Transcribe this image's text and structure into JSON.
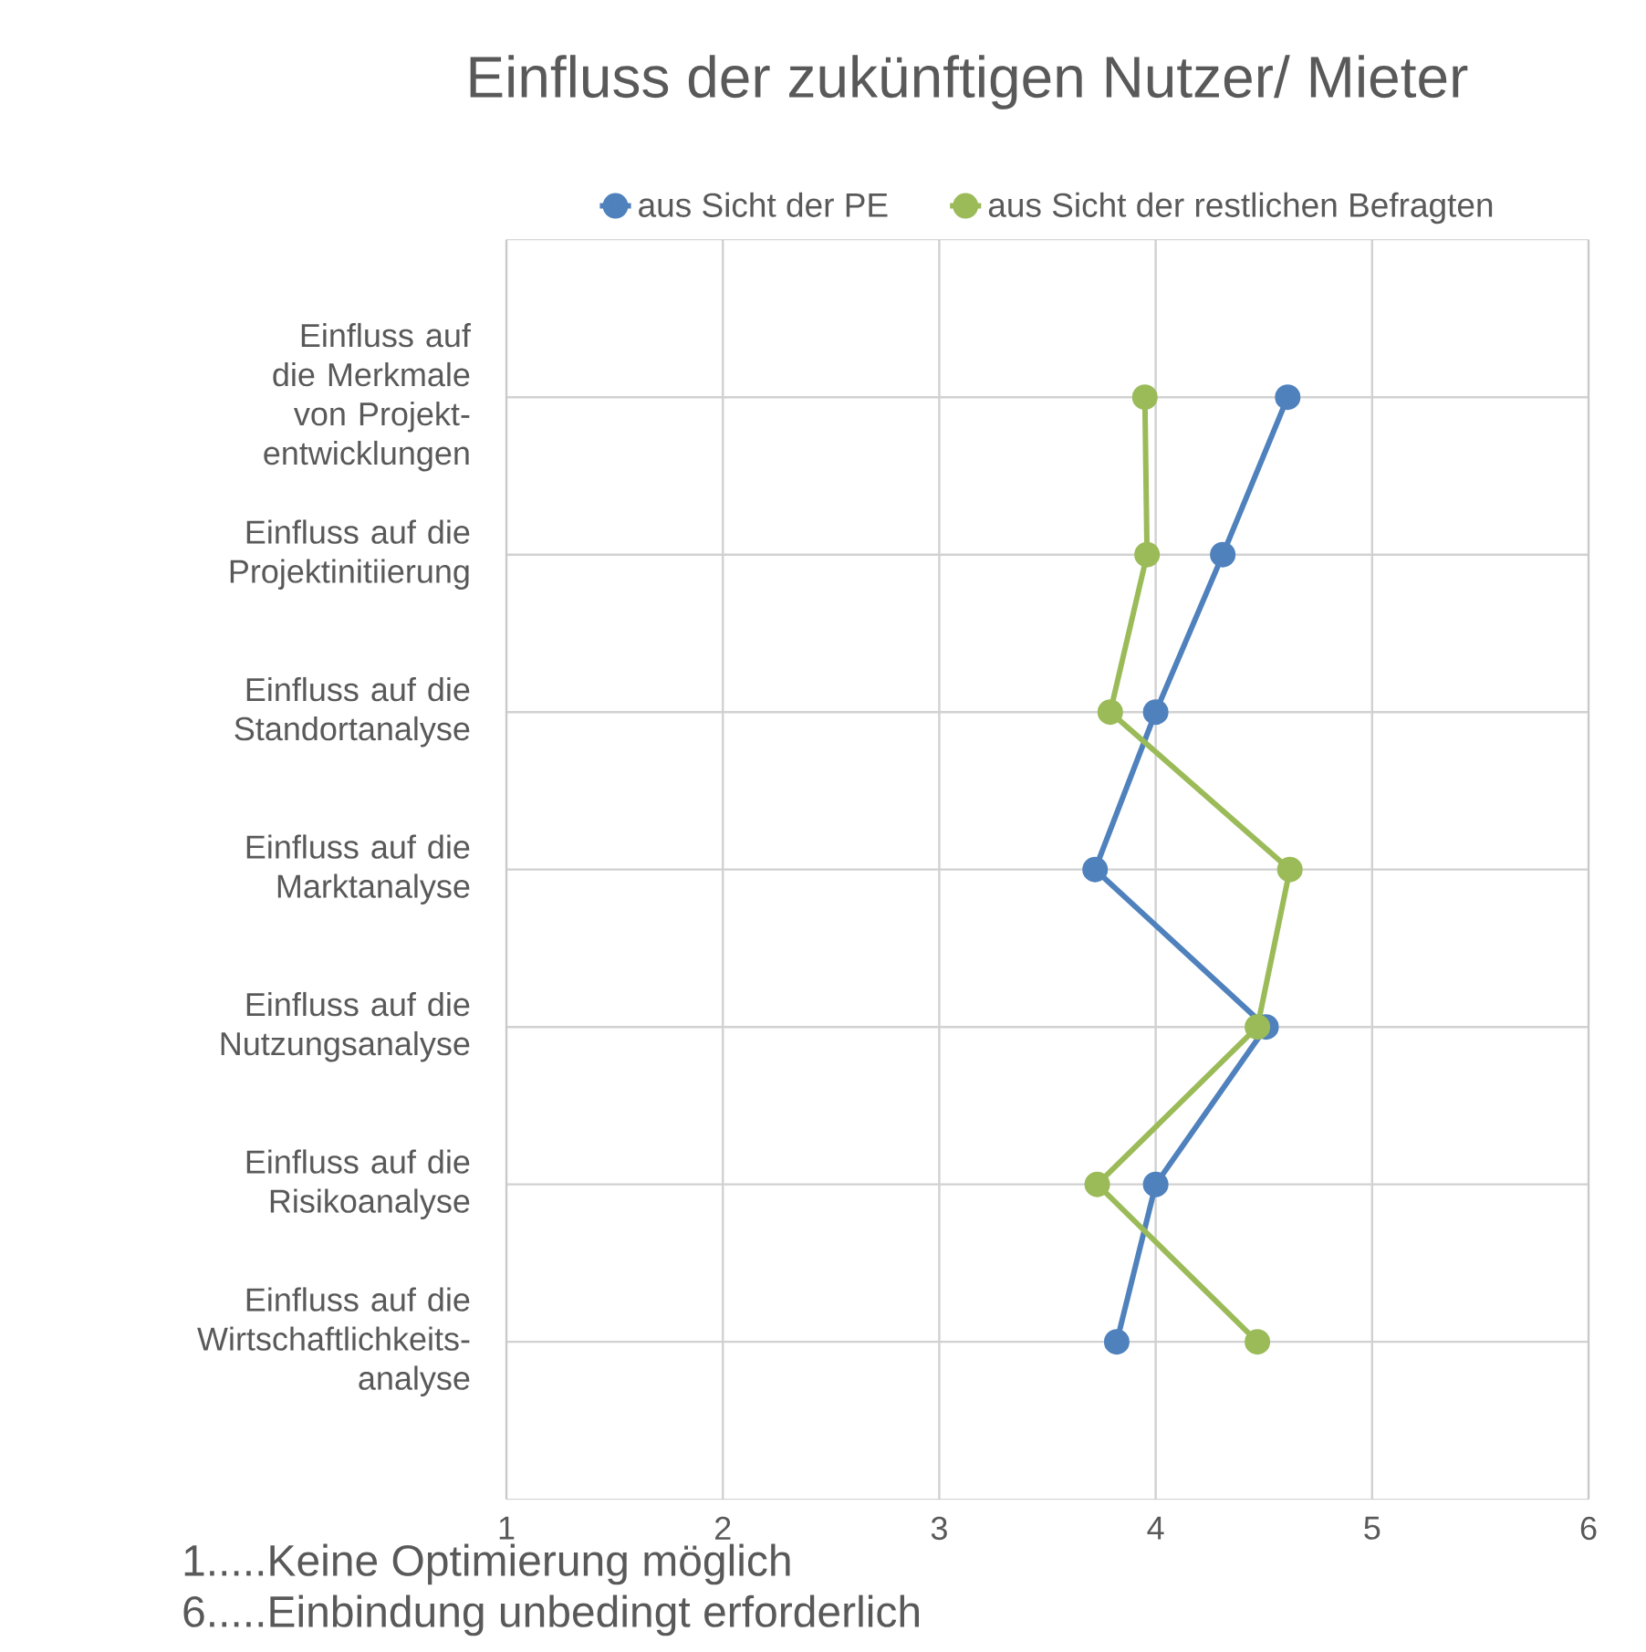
{
  "chart_data": {
    "type": "line",
    "orientation": "horizontal",
    "title": "Einfluss der zukünftigen Nutzer/ Mieter",
    "categories": [
      "Einfluss auf die Merkmale von Projekt-entwicklungen",
      "Einfluss auf die Projektinitiierung",
      "Einfluss auf die Standortanalyse",
      "Einfluss auf die Marktanalyse",
      "Einfluss auf die Nutzungsanalyse",
      "Einfluss auf die Risikoanalyse",
      "Einfluss auf die Wirtschaftlichkeits-analyse"
    ],
    "series": [
      {
        "name": "aus Sicht der PE",
        "color": "#4f81bd",
        "values": [
          4.61,
          4.31,
          4.0,
          3.72,
          4.51,
          4.0,
          3.82
        ]
      },
      {
        "name": "aus Sicht der restlichen Befragten",
        "color": "#9bbb59",
        "values": [
          3.95,
          3.96,
          3.79,
          4.62,
          4.47,
          3.73,
          4.47
        ]
      }
    ],
    "xlim": [
      1,
      6
    ],
    "xticks": [
      1,
      2,
      3,
      4,
      5,
      6
    ],
    "grid": true,
    "legend": "top",
    "marker": "circle",
    "line_style": "solid",
    "annotations": [
      "1.....Keine Optimierung möglich",
      "6.....Einbindung unbedingt erforderlich"
    ]
  }
}
